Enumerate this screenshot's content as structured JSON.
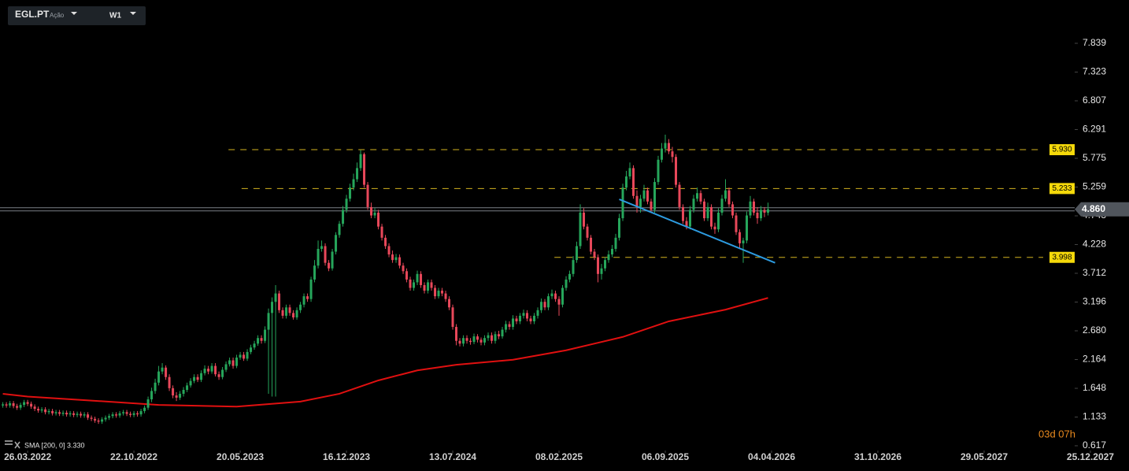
{
  "chart_data": {
    "type": "candlestick",
    "symbol": "EGL.PT",
    "instrument_type": "Ação",
    "timeframe": "W1",
    "up_color": "#26a65b",
    "down_color": "#e8485a",
    "grid": false,
    "x": [
      -7,
      -6,
      -5,
      -4,
      -3,
      -2,
      -1,
      0,
      1,
      2,
      3,
      4,
      5,
      6,
      7,
      8,
      9,
      10,
      11,
      12,
      13,
      14,
      15,
      16,
      17,
      18,
      19,
      20,
      21,
      22,
      23,
      24,
      25,
      26,
      27,
      28,
      29,
      30,
      31,
      32,
      33,
      34,
      35,
      36,
      37,
      38,
      39,
      40,
      41,
      42,
      43,
      44,
      45,
      46,
      47,
      48,
      49,
      50,
      51,
      52,
      53,
      54,
      55,
      56,
      57,
      58,
      59,
      60,
      61,
      62,
      63,
      64,
      65,
      66,
      67,
      68,
      69,
      70,
      71,
      72,
      73,
      74,
      75,
      76,
      77,
      78,
      79,
      80,
      81,
      82,
      83,
      84,
      85,
      86,
      87,
      88,
      89,
      90,
      91,
      92,
      93,
      94,
      95,
      96,
      97,
      98,
      99,
      100,
      101,
      102,
      103,
      104,
      105,
      106,
      107,
      108,
      109,
      110,
      111,
      112,
      113,
      114,
      115,
      116,
      117,
      118,
      119,
      120,
      121,
      122,
      123,
      124,
      125,
      126,
      127,
      128,
      129,
      130,
      131,
      132,
      133,
      134,
      135,
      136,
      137,
      138,
      139,
      140,
      141,
      142,
      143,
      144,
      145,
      146,
      147,
      148,
      149,
      150,
      151,
      152,
      153,
      154,
      155,
      156,
      157,
      158,
      159,
      160,
      161,
      162,
      163,
      164,
      165,
      166,
      167,
      168,
      169,
      170,
      171,
      172,
      173,
      174,
      175,
      176,
      177,
      178,
      179,
      180,
      181,
      182,
      183,
      184,
      185,
      186,
      187,
      188,
      189,
      190,
      191,
      192,
      193,
      194,
      195,
      196,
      197,
      198,
      199,
      200,
      201,
      202,
      203,
      204,
      205,
      206,
      207,
      208,
      209
    ],
    "open": [
      1.34,
      1.36,
      1.34,
      1.38,
      1.33,
      1.3,
      1.35,
      1.4,
      1.37,
      1.32,
      1.28,
      1.25,
      1.27,
      1.22,
      1.24,
      1.2,
      1.22,
      1.19,
      1.21,
      1.18,
      1.2,
      1.17,
      1.19,
      1.16,
      1.18,
      1.12,
      1.1,
      1.07,
      1.05,
      1.09,
      1.12,
      1.15,
      1.18,
      1.16,
      1.2,
      1.22,
      1.19,
      1.17,
      1.2,
      1.18,
      1.24,
      1.3,
      1.45,
      1.6,
      1.75,
      1.95,
      2.02,
      1.85,
      1.65,
      1.52,
      1.48,
      1.55,
      1.62,
      1.7,
      1.78,
      1.85,
      1.8,
      1.92,
      2.0,
      1.95,
      2.05,
      1.9,
      1.85,
      1.98,
      2.08,
      2.15,
      2.05,
      2.2,
      2.25,
      2.18,
      2.3,
      2.38,
      2.45,
      2.55,
      2.5,
      2.7,
      3.0,
      3.2,
      3.35,
      3.05,
      2.95,
      3.1,
      3.0,
      2.92,
      3.05,
      3.15,
      3.3,
      3.25,
      3.6,
      3.85,
      4.15,
      4.2,
      3.9,
      3.8,
      4.1,
      4.4,
      4.6,
      4.85,
      5.05,
      5.25,
      5.4,
      5.6,
      5.85,
      5.3,
      4.9,
      4.75,
      4.8,
      4.55,
      4.35,
      4.2,
      4.05,
      3.95,
      4.0,
      3.85,
      3.75,
      3.6,
      3.45,
      3.55,
      3.7,
      3.5,
      3.4,
      3.55,
      3.45,
      3.3,
      3.4,
      3.35,
      3.25,
      3.1,
      2.75,
      2.5,
      2.45,
      2.55,
      2.5,
      2.48,
      2.58,
      2.52,
      2.47,
      2.55,
      2.6,
      2.5,
      2.62,
      2.58,
      2.7,
      2.8,
      2.75,
      2.9,
      2.85,
      2.95,
      3.0,
      2.9,
      2.85,
      2.95,
      3.05,
      3.2,
      3.1,
      3.3,
      3.35,
      3.25,
      3.15,
      3.45,
      3.6,
      3.7,
      3.95,
      4.2,
      4.8,
      4.55,
      4.35,
      4.1,
      4.0,
      3.7,
      3.8,
      3.95,
      4.05,
      4.15,
      4.35,
      4.7,
      5.25,
      5.45,
      5.6,
      5.1,
      4.9,
      5.05,
      5.2,
      5.0,
      4.85,
      5.35,
      5.75,
      5.95,
      6.05,
      5.9,
      5.8,
      5.3,
      4.9,
      4.65,
      4.55,
      4.85,
      5.05,
      5.15,
      5.0,
      4.7,
      4.9,
      4.55,
      4.5,
      4.8,
      5.05,
      5.2,
      4.95,
      4.75,
      4.45,
      4.25,
      4.3,
      4.75,
      5.0,
      4.8,
      4.7,
      4.85,
      4.8
    ],
    "high": [
      1.4,
      1.4,
      1.42,
      1.42,
      1.37,
      1.39,
      1.44,
      1.44,
      1.41,
      1.36,
      1.32,
      1.31,
      1.31,
      1.28,
      1.28,
      1.26,
      1.26,
      1.25,
      1.25,
      1.24,
      1.24,
      1.23,
      1.23,
      1.22,
      1.22,
      1.16,
      1.14,
      1.11,
      1.13,
      1.16,
      1.19,
      1.22,
      1.22,
      1.24,
      1.26,
      1.26,
      1.23,
      1.24,
      1.24,
      1.28,
      1.34,
      1.5,
      1.66,
      1.82,
      2.05,
      2.1,
      2.06,
      1.9,
      1.7,
      1.58,
      1.6,
      1.67,
      1.75,
      1.83,
      1.9,
      1.9,
      1.97,
      2.06,
      2.05,
      2.1,
      2.1,
      1.95,
      2.03,
      2.13,
      2.2,
      2.2,
      2.25,
      2.3,
      2.3,
      2.35,
      2.43,
      2.5,
      2.6,
      2.6,
      2.76,
      3.08,
      3.28,
      3.5,
      3.4,
      3.1,
      3.15,
      3.15,
      3.05,
      3.1,
      3.2,
      3.35,
      3.35,
      3.65,
      3.95,
      4.3,
      4.3,
      4.25,
      3.95,
      4.15,
      4.45,
      4.65,
      4.92,
      5.12,
      5.32,
      5.5,
      5.7,
      5.92,
      5.88,
      5.35,
      4.98,
      4.88,
      4.85,
      4.6,
      4.4,
      4.25,
      4.12,
      4.06,
      4.05,
      3.9,
      3.8,
      3.65,
      3.6,
      3.76,
      3.75,
      3.55,
      3.6,
      3.6,
      3.5,
      3.45,
      3.45,
      3.4,
      3.3,
      3.15,
      2.8,
      2.55,
      2.6,
      2.6,
      2.55,
      2.63,
      2.62,
      2.56,
      2.6,
      2.65,
      2.65,
      2.67,
      2.68,
      2.75,
      2.86,
      2.85,
      2.96,
      2.95,
      3.0,
      3.06,
      3.05,
      2.95,
      3.0,
      3.1,
      3.26,
      3.25,
      3.35,
      3.42,
      3.4,
      3.3,
      3.5,
      3.66,
      3.76,
      4.02,
      4.28,
      4.95,
      4.88,
      4.6,
      4.4,
      4.15,
      4.05,
      3.88,
      4.0,
      4.12,
      4.22,
      4.42,
      4.78,
      5.32,
      5.55,
      5.7,
      5.65,
      5.2,
      5.12,
      5.3,
      5.25,
      5.05,
      5.42,
      5.82,
      6.05,
      6.2,
      6.12,
      5.98,
      5.85,
      5.35,
      4.95,
      4.72,
      4.92,
      5.12,
      5.25,
      5.2,
      5.05,
      4.98,
      4.95,
      4.62,
      4.88,
      5.12,
      5.4,
      5.25,
      5.0,
      4.8,
      4.5,
      4.35,
      4.82,
      5.1,
      5.05,
      4.9,
      4.92,
      4.9,
      4.98
    ],
    "low": [
      1.3,
      1.3,
      1.3,
      1.29,
      1.26,
      1.26,
      1.31,
      1.33,
      1.28,
      1.24,
      1.21,
      1.21,
      1.18,
      1.18,
      1.16,
      1.16,
      1.15,
      1.15,
      1.14,
      1.14,
      1.13,
      1.13,
      1.12,
      1.12,
      1.08,
      1.06,
      1.03,
      1.01,
      1.01,
      1.05,
      1.08,
      1.11,
      1.12,
      1.12,
      1.16,
      1.15,
      1.13,
      1.13,
      1.14,
      1.14,
      1.2,
      1.26,
      1.4,
      1.55,
      1.7,
      1.9,
      1.8,
      1.6,
      1.47,
      1.42,
      1.44,
      1.5,
      1.58,
      1.66,
      1.74,
      1.76,
      1.76,
      1.88,
      1.9,
      1.91,
      1.86,
      1.8,
      1.81,
      1.94,
      2.04,
      2.0,
      2.01,
      2.16,
      2.14,
      2.14,
      2.26,
      2.34,
      2.41,
      2.45,
      2.46,
      1.55,
      1.5,
      1.5,
      3.0,
      2.9,
      2.9,
      2.95,
      2.88,
      2.88,
      3.0,
      3.1,
      3.2,
      3.2,
      3.55,
      3.8,
      4.1,
      3.85,
      3.75,
      3.76,
      4.05,
      4.35,
      4.55,
      4.8,
      5.0,
      5.2,
      5.35,
      5.55,
      5.25,
      4.85,
      4.7,
      4.7,
      4.5,
      4.3,
      4.15,
      4.0,
      3.9,
      3.9,
      3.8,
      3.7,
      3.55,
      3.4,
      3.4,
      3.5,
      3.45,
      3.35,
      3.35,
      3.4,
      3.25,
      3.26,
      3.3,
      3.2,
      3.05,
      2.7,
      2.42,
      2.4,
      2.4,
      2.45,
      2.43,
      2.44,
      2.47,
      2.42,
      2.42,
      2.5,
      2.45,
      2.45,
      2.53,
      2.54,
      2.65,
      2.7,
      2.7,
      2.8,
      2.8,
      2.9,
      2.85,
      2.8,
      2.8,
      2.9,
      3.0,
      3.05,
      3.05,
      3.25,
      3.2,
      2.95,
      3.1,
      3.4,
      3.55,
      3.65,
      3.9,
      4.15,
      4.5,
      4.3,
      4.05,
      3.95,
      3.55,
      3.6,
      3.75,
      3.9,
      4.0,
      4.1,
      4.3,
      4.65,
      5.2,
      5.4,
      5.05,
      4.8,
      4.8,
      5.0,
      4.95,
      4.8,
      4.8,
      5.3,
      5.7,
      5.88,
      5.85,
      5.7,
      5.25,
      4.85,
      4.6,
      4.5,
      4.5,
      4.8,
      5.0,
      4.95,
      4.65,
      4.65,
      4.5,
      4.42,
      4.45,
      4.75,
      5.0,
      4.9,
      4.7,
      4.4,
      4.15,
      3.9,
      4.25,
      4.7,
      4.75,
      4.6,
      4.65,
      4.72,
      4.75
    ],
    "close": [
      1.36,
      1.34,
      1.38,
      1.33,
      1.3,
      1.35,
      1.4,
      1.37,
      1.32,
      1.28,
      1.25,
      1.27,
      1.22,
      1.24,
      1.2,
      1.22,
      1.19,
      1.21,
      1.18,
      1.2,
      1.17,
      1.19,
      1.16,
      1.18,
      1.12,
      1.1,
      1.07,
      1.05,
      1.09,
      1.12,
      1.15,
      1.18,
      1.16,
      1.2,
      1.22,
      1.19,
      1.17,
      1.2,
      1.18,
      1.24,
      1.3,
      1.45,
      1.6,
      1.75,
      1.95,
      2.02,
      1.85,
      1.65,
      1.52,
      1.48,
      1.55,
      1.62,
      1.7,
      1.78,
      1.85,
      1.8,
      1.92,
      2.0,
      1.95,
      2.05,
      1.9,
      1.85,
      1.98,
      2.08,
      2.15,
      2.05,
      2.2,
      2.25,
      2.18,
      2.3,
      2.38,
      2.45,
      2.55,
      2.5,
      2.7,
      3.0,
      3.2,
      3.35,
      3.05,
      2.95,
      3.1,
      3.0,
      2.92,
      3.05,
      3.15,
      3.3,
      3.25,
      3.6,
      3.85,
      4.15,
      4.2,
      3.9,
      3.8,
      4.1,
      4.4,
      4.6,
      4.85,
      5.05,
      5.25,
      5.4,
      5.6,
      5.85,
      5.3,
      4.9,
      4.75,
      4.8,
      4.55,
      4.35,
      4.2,
      4.05,
      3.95,
      4.0,
      3.85,
      3.75,
      3.6,
      3.45,
      3.55,
      3.7,
      3.5,
      3.4,
      3.55,
      3.45,
      3.3,
      3.4,
      3.35,
      3.25,
      3.1,
      2.75,
      2.5,
      2.45,
      2.55,
      2.5,
      2.48,
      2.58,
      2.52,
      2.47,
      2.55,
      2.6,
      2.5,
      2.62,
      2.58,
      2.7,
      2.8,
      2.75,
      2.9,
      2.85,
      2.95,
      3.0,
      2.9,
      2.85,
      2.95,
      3.05,
      3.2,
      3.1,
      3.3,
      3.35,
      3.25,
      3.15,
      3.45,
      3.6,
      3.7,
      3.95,
      4.2,
      4.8,
      4.55,
      4.35,
      4.1,
      4.0,
      3.7,
      3.8,
      3.95,
      4.05,
      4.15,
      4.35,
      4.7,
      5.25,
      5.45,
      5.6,
      5.1,
      4.9,
      5.05,
      5.2,
      5.0,
      4.85,
      5.35,
      5.75,
      5.95,
      6.05,
      5.9,
      5.8,
      5.3,
      4.9,
      4.65,
      4.55,
      4.85,
      5.05,
      5.15,
      5.0,
      4.7,
      4.9,
      4.55,
      4.5,
      4.8,
      5.05,
      5.2,
      4.95,
      4.75,
      4.45,
      4.25,
      4.3,
      4.75,
      5.0,
      4.8,
      4.7,
      4.85,
      4.8,
      4.86
    ],
    "xlim": [
      -7.8,
      310.9
    ],
    "xticks": [
      {
        "value": 0,
        "label": "26.03.2022"
      },
      {
        "value": 30,
        "label": "22.10.2022"
      },
      {
        "value": 60,
        "label": "20.05.2023"
      },
      {
        "value": 90,
        "label": "16.12.2023"
      },
      {
        "value": 120,
        "label": "13.07.2024"
      },
      {
        "value": 150,
        "label": "08.02.2025"
      },
      {
        "value": 180,
        "label": "06.09.2025"
      },
      {
        "value": 210,
        "label": "04.04.2026"
      },
      {
        "value": 240,
        "label": "31.10.2026"
      },
      {
        "value": 270,
        "label": "29.05.2027"
      },
      {
        "value": 300,
        "label": "25.12.2027"
      }
    ],
    "ylim": [
      0.56,
      8.616
    ],
    "yticks": [
      0.617,
      1.133,
      1.648,
      2.164,
      {
        "value": 2.68,
        "label": "2.680"
      },
      3.196,
      3.712,
      4.228,
      4.743,
      5.259,
      5.775,
      6.291,
      6.807,
      7.323,
      7.839
    ],
    "sma": {
      "label": "SMA [200, 0] 3.330",
      "color": "#e01010",
      "x": [
        -7,
        0,
        15,
        37,
        59,
        77,
        88,
        99,
        110,
        121,
        137,
        152,
        168,
        181,
        197,
        209
      ],
      "values": [
        1.55,
        1.5,
        1.44,
        1.35,
        1.32,
        1.41,
        1.55,
        1.79,
        1.97,
        2.07,
        2.16,
        2.33,
        2.57,
        2.85,
        3.06,
        3.27
      ]
    },
    "levels": [
      {
        "value": 5.93,
        "label": "5.930",
        "x_start": 56.7,
        "color": "#d4b320"
      },
      {
        "value": 5.233,
        "label": "5.233",
        "x_start": 60.4,
        "color": "#d4b320"
      },
      {
        "value": 3.998,
        "label": "3.998",
        "x_start": 148.7,
        "color": "#d4b320"
      }
    ],
    "last_price": {
      "value": 4.86,
      "label": "4.860"
    },
    "trendline": {
      "color": "#2d9be0",
      "x": [
        167,
        211
      ],
      "values": [
        5.04,
        3.9
      ]
    },
    "countdown": "03d 07h"
  }
}
